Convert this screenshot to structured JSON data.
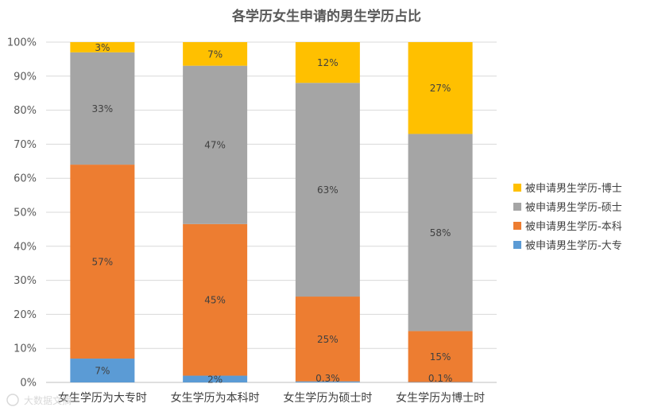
{
  "chart_data": {
    "type": "bar",
    "stacked": "percent",
    "title": "各学历女生申请的男生学历占比",
    "categories": [
      "女生学历为大专时",
      "女生学历为本科时",
      "女生学历为硕士时",
      "女生学历为博士时"
    ],
    "series": [
      {
        "name": "被申请男生学历-大专",
        "color": "#5B9BD5",
        "values": [
          0.07,
          0.02,
          0.003,
          0.001
        ],
        "labels": [
          "7%",
          "2%",
          "0.3%",
          "0.1%"
        ]
      },
      {
        "name": "被申请男生学历-本科",
        "color": "#ED7D31",
        "values": [
          0.57,
          0.45,
          0.25,
          0.15
        ],
        "labels": [
          "57%",
          "45%",
          "25%",
          "15%"
        ]
      },
      {
        "name": "被申请男生学历-硕士",
        "color": "#A5A5A5",
        "values": [
          0.33,
          0.47,
          0.63,
          0.58
        ],
        "labels": [
          "33%",
          "47%",
          "63%",
          "58%"
        ]
      },
      {
        "name": "被申请男生学历-博士",
        "color": "#FFC000",
        "values": [
          0.03,
          0.07,
          0.12,
          0.27
        ],
        "labels": [
          "3%",
          "7%",
          "12%",
          "27%"
        ]
      }
    ],
    "y_ticks": [
      "0%",
      "10%",
      "20%",
      "30%",
      "40%",
      "50%",
      "60%",
      "70%",
      "80%",
      "90%",
      "100%"
    ],
    "ylim": [
      0,
      1
    ],
    "grid": true,
    "legend_position": "right"
  },
  "watermark": "大数据文摘"
}
